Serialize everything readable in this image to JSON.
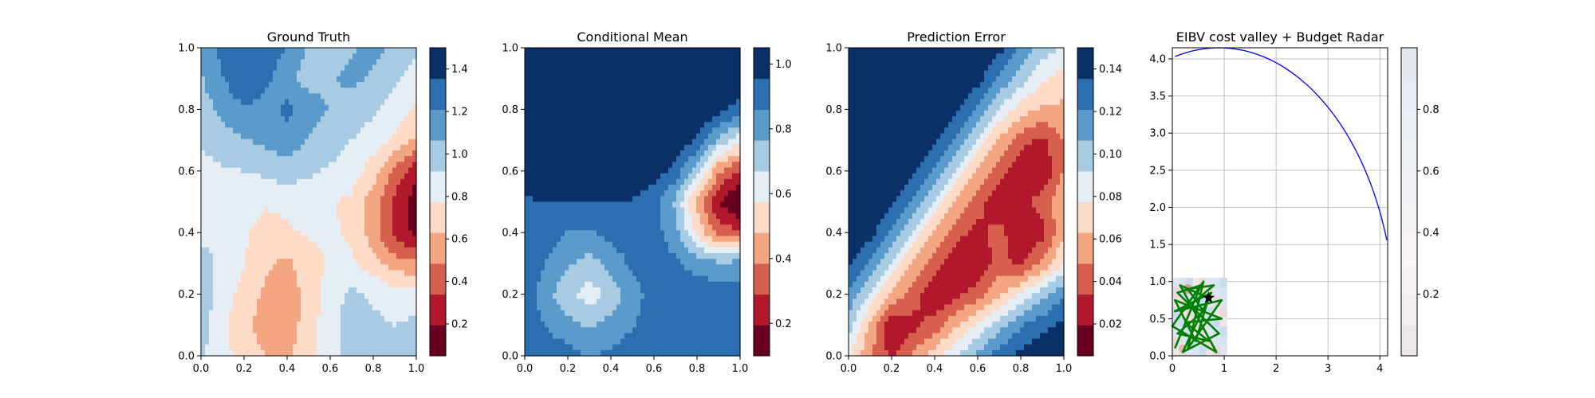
{
  "colors": {
    "rdbu_10": [
      "#67001f",
      "#b2182b",
      "#d6604d",
      "#f4a582",
      "#fddbc7",
      "#e5eef4",
      "#a6cbe3",
      "#5a9bcb",
      "#2c6fb0",
      "#0a3068"
    ],
    "valley_cmap": [
      "#ede7ec",
      "#f3eef1",
      "#f8f4f5",
      "#fbf7f7",
      "#f6f3f5",
      "#f2f3f7",
      "#eef2f7",
      "#eaf0f7",
      "#e7edf6",
      "#e4e9f1"
    ],
    "budget_line": "#0000ff",
    "path": "#008000",
    "current_marker": "#000000"
  },
  "chart_data": [
    {
      "type": "heatmap",
      "title": "Ground Truth",
      "xlim": [
        0,
        1
      ],
      "ylim": [
        0,
        1
      ],
      "xticks": [
        "0.0",
        "0.2",
        "0.4",
        "0.6",
        "0.8",
        "1.0"
      ],
      "yticks": [
        "0.0",
        "0.2",
        "0.4",
        "0.6",
        "0.8",
        "1.0"
      ],
      "colorbar": {
        "min": 0.05,
        "max": 1.5,
        "ticks": [
          "0.2",
          "0.4",
          "0.6",
          "0.8",
          "1.0",
          "1.2",
          "1.4"
        ]
      },
      "grid": false,
      "grid_values": [
        [
          1.1,
          1.25,
          1.35,
          1.3,
          1.2,
          1.05,
          1.0,
          1.05,
          1.1,
          1.05,
          0.95
        ],
        [
          1.05,
          1.2,
          1.35,
          1.25,
          1.1,
          1.0,
          1.05,
          1.1,
          1.05,
          0.95,
          0.85
        ],
        [
          1.0,
          1.1,
          1.2,
          1.15,
          1.25,
          1.15,
          1.05,
          1.0,
          0.95,
          0.85,
          0.75
        ],
        [
          0.95,
          1.0,
          1.05,
          1.1,
          1.15,
          1.05,
          0.98,
          0.92,
          0.85,
          0.75,
          0.6
        ],
        [
          0.85,
          0.9,
          0.92,
          0.95,
          1.0,
          0.95,
          0.9,
          0.85,
          0.7,
          0.45,
          0.25
        ],
        [
          0.85,
          0.88,
          0.85,
          0.8,
          0.82,
          0.8,
          0.78,
          0.75,
          0.55,
          0.3,
          0.1
        ],
        [
          0.9,
          0.92,
          0.8,
          0.7,
          0.75,
          0.8,
          0.8,
          0.75,
          0.55,
          0.3,
          0.15
        ],
        [
          0.95,
          0.9,
          0.78,
          0.65,
          0.6,
          0.7,
          0.8,
          0.8,
          0.7,
          0.55,
          0.5
        ],
        [
          1.0,
          0.85,
          0.72,
          0.6,
          0.55,
          0.68,
          0.85,
          0.95,
          0.9,
          0.85,
          0.85
        ],
        [
          1.0,
          0.8,
          0.68,
          0.55,
          0.55,
          0.7,
          0.88,
          0.98,
          0.95,
          0.92,
          0.95
        ],
        [
          0.95,
          0.8,
          0.75,
          0.62,
          0.6,
          0.72,
          0.88,
          0.98,
          0.95,
          0.92,
          0.95
        ]
      ]
    },
    {
      "type": "heatmap",
      "title": "Conditional Mean",
      "xlim": [
        0,
        1
      ],
      "ylim": [
        0,
        1
      ],
      "xticks": [
        "0.0",
        "0.2",
        "0.4",
        "0.6",
        "0.8",
        "1.0"
      ],
      "yticks": [
        "0.0",
        "0.2",
        "0.4",
        "0.6",
        "0.8",
        "1.0"
      ],
      "colorbar": {
        "min": 0.1,
        "max": 1.05,
        "ticks": [
          "0.2",
          "0.4",
          "0.6",
          "0.8",
          "1.0"
        ]
      },
      "grid": false,
      "grid_values": [
        [
          1.05,
          1.05,
          1.05,
          1.05,
          1.05,
          1.05,
          1.05,
          1.05,
          1.05,
          1.05,
          1.05
        ],
        [
          1.05,
          1.05,
          1.05,
          1.05,
          1.05,
          1.05,
          1.05,
          1.05,
          1.05,
          1.05,
          1.05
        ],
        [
          1.05,
          1.05,
          1.05,
          1.05,
          1.05,
          1.05,
          1.05,
          1.05,
          1.05,
          1.0,
          0.9
        ],
        [
          1.05,
          1.05,
          1.05,
          1.05,
          1.05,
          1.05,
          1.05,
          1.05,
          0.95,
          0.75,
          0.62
        ],
        [
          0.98,
          1.05,
          1.05,
          1.05,
          1.05,
          1.05,
          1.0,
          0.92,
          0.7,
          0.4,
          0.28
        ],
        [
          0.95,
          0.95,
          0.95,
          0.95,
          0.95,
          0.95,
          0.9,
          0.75,
          0.45,
          0.2,
          0.08
        ],
        [
          0.95,
          0.92,
          0.85,
          0.85,
          0.9,
          0.92,
          0.9,
          0.8,
          0.55,
          0.35,
          0.3
        ],
        [
          0.95,
          0.85,
          0.78,
          0.72,
          0.8,
          0.88,
          0.9,
          0.88,
          0.82,
          0.78,
          0.8
        ],
        [
          0.92,
          0.8,
          0.7,
          0.62,
          0.7,
          0.82,
          0.9,
          0.92,
          0.92,
          0.92,
          0.92
        ],
        [
          0.92,
          0.85,
          0.8,
          0.75,
          0.8,
          0.85,
          0.92,
          0.94,
          0.94,
          0.94,
          0.94
        ],
        [
          0.95,
          0.92,
          0.9,
          0.85,
          0.88,
          0.92,
          0.94,
          0.95,
          0.95,
          0.95,
          0.95
        ]
      ]
    },
    {
      "type": "heatmap",
      "title": "Prediction Error",
      "xlim": [
        0,
        1
      ],
      "ylim": [
        0,
        1
      ],
      "xticks": [
        "0.0",
        "0.2",
        "0.4",
        "0.6",
        "0.8",
        "1.0"
      ],
      "yticks": [
        "0.0",
        "0.2",
        "0.4",
        "0.6",
        "0.8",
        "1.0"
      ],
      "colorbar": {
        "min": 0.005,
        "max": 0.15,
        "ticks": [
          "0.02",
          "0.04",
          "0.06",
          "0.08",
          "0.10",
          "0.12",
          "0.14"
        ]
      },
      "grid": false,
      "grid_values": [
        [
          0.15,
          0.15,
          0.15,
          0.15,
          0.15,
          0.15,
          0.15,
          0.14,
          0.12,
          0.1,
          0.09
        ],
        [
          0.15,
          0.15,
          0.15,
          0.15,
          0.15,
          0.15,
          0.14,
          0.12,
          0.1,
          0.08,
          0.07
        ],
        [
          0.15,
          0.15,
          0.15,
          0.15,
          0.15,
          0.14,
          0.12,
          0.09,
          0.07,
          0.06,
          0.06
        ],
        [
          0.15,
          0.15,
          0.15,
          0.15,
          0.14,
          0.12,
          0.09,
          0.06,
          0.04,
          0.03,
          0.05
        ],
        [
          0.15,
          0.15,
          0.15,
          0.14,
          0.12,
          0.09,
          0.06,
          0.04,
          0.02,
          0.02,
          0.05
        ],
        [
          0.15,
          0.15,
          0.14,
          0.12,
          0.09,
          0.06,
          0.04,
          0.02,
          0.03,
          0.04,
          0.06
        ],
        [
          0.15,
          0.14,
          0.12,
          0.09,
          0.06,
          0.04,
          0.03,
          0.04,
          0.02,
          0.03,
          0.06
        ],
        [
          0.14,
          0.12,
          0.09,
          0.06,
          0.04,
          0.02,
          0.02,
          0.04,
          0.03,
          0.05,
          0.08
        ],
        [
          0.12,
          0.09,
          0.06,
          0.04,
          0.02,
          0.03,
          0.04,
          0.06,
          0.08,
          0.1,
          0.12
        ],
        [
          0.1,
          0.06,
          0.02,
          0.03,
          0.04,
          0.06,
          0.08,
          0.1,
          0.12,
          0.13,
          0.14
        ],
        [
          0.08,
          0.05,
          0.03,
          0.05,
          0.07,
          0.09,
          0.11,
          0.13,
          0.14,
          0.15,
          0.15
        ]
      ]
    },
    {
      "type": "line",
      "title": "EIBV cost valley + Budget Radar",
      "xlim": [
        0,
        4.15
      ],
      "ylim": [
        0,
        4.15
      ],
      "xticks": [
        "0",
        "1",
        "2",
        "3",
        "4"
      ],
      "yticks": [
        "0.0",
        "0.5",
        "1.0",
        "1.5",
        "2.0",
        "2.5",
        "3.0",
        "3.5",
        "4.0"
      ],
      "colorbar": {
        "min": 0,
        "max": 1,
        "ticks": [
          "0.2",
          "0.4",
          "0.6",
          "0.8"
        ]
      },
      "grid": true,
      "budget_ellipse": {
        "center": [
          0.9,
          0.4
        ],
        "radius_x": 3.4,
        "radius_y": 3.75
      },
      "valley_extent": [
        0,
        1.05,
        0,
        1.05
      ],
      "current_location": [
        0.7,
        0.78
      ],
      "path": [
        [
          0.05,
          0.1
        ],
        [
          0.55,
          0.95
        ],
        [
          0.1,
          0.85
        ],
        [
          0.9,
          0.3
        ],
        [
          0.2,
          0.05
        ],
        [
          0.75,
          0.85
        ],
        [
          0.05,
          0.6
        ],
        [
          0.95,
          0.75
        ],
        [
          0.3,
          0.1
        ],
        [
          0.6,
          1.0
        ],
        [
          0.0,
          0.4
        ],
        [
          0.85,
          0.05
        ],
        [
          0.15,
          0.95
        ],
        [
          0.7,
          0.78
        ],
        [
          0.45,
          0.2
        ],
        [
          0.05,
          0.75
        ],
        [
          0.95,
          0.5
        ],
        [
          0.25,
          0.45
        ],
        [
          0.7,
          0.2
        ],
        [
          0.1,
          0.3
        ],
        [
          0.6,
          0.6
        ],
        [
          0.3,
          0.9
        ],
        [
          0.8,
          0.95
        ],
        [
          0.2,
          0.6
        ]
      ]
    }
  ]
}
